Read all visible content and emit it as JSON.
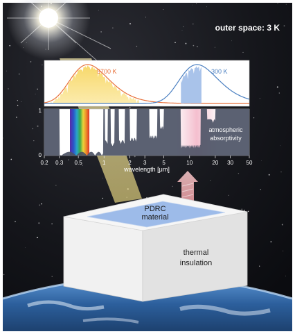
{
  "scene": {
    "outer_space_label": "outer space: 3 K",
    "material_label_lines": [
      "PDRC",
      "material"
    ],
    "insulation_label_lines": [
      "thermal",
      "insulation"
    ]
  },
  "spectrum": {
    "sun_curve_label": "5700 K",
    "earth_curve_label": "300 K",
    "absorptivity_label_lines": [
      "atmospheric",
      "absorptivity"
    ],
    "y_tick_labels": [
      "1",
      "0"
    ],
    "x_tick_labels": [
      "0.2",
      "0.3",
      "0.5",
      "1",
      "2",
      "3",
      "5",
      "10",
      "20",
      "30",
      "50"
    ],
    "x_axis_label": "wavelength [μm]"
  },
  "colors": {
    "sun_curve": "#e8703a",
    "sun_fill": "#f7d45a",
    "earth_curve": "#4a7fc1",
    "earth_fill": "#9ab8e6",
    "absorptivity_fill": "#4d5466",
    "sunlight_beam": "#e9d98a",
    "thermal_arrow": "#e8a3a6",
    "material_surface": "#8fb3e8",
    "box_face": "#e4e4e4"
  }
}
